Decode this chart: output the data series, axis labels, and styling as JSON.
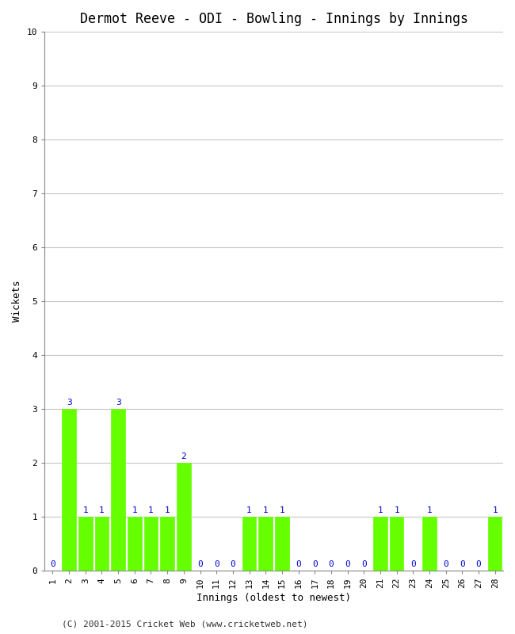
{
  "title": "Dermot Reeve - ODI - Bowling - Innings by Innings",
  "xlabel": "Innings (oldest to newest)",
  "ylabel": "Wickets",
  "innings": [
    1,
    2,
    3,
    4,
    5,
    6,
    7,
    8,
    9,
    10,
    11,
    12,
    13,
    14,
    15,
    16,
    17,
    18,
    19,
    20,
    21,
    22,
    23,
    24,
    25,
    26,
    27,
    28
  ],
  "wickets": [
    0,
    3,
    1,
    1,
    3,
    1,
    1,
    1,
    2,
    0,
    0,
    0,
    1,
    1,
    1,
    0,
    0,
    0,
    0,
    0,
    1,
    1,
    0,
    1,
    0,
    0,
    0,
    1
  ],
  "bar_color": "#66ff00",
  "bar_edge_color": "#66ff00",
  "label_color": "#0000cc",
  "background_color": "#ffffff",
  "plot_bg_color": "#ffffff",
  "grid_color": "#c8c8c8",
  "ylim": [
    0,
    10
  ],
  "yticks": [
    0,
    1,
    2,
    3,
    4,
    5,
    6,
    7,
    8,
    9,
    10
  ],
  "title_fontsize": 12,
  "axis_label_fontsize": 9,
  "tick_label_fontsize": 8,
  "annotation_fontsize": 8,
  "footer_text": "(C) 2001-2015 Cricket Web (www.cricketweb.net)"
}
